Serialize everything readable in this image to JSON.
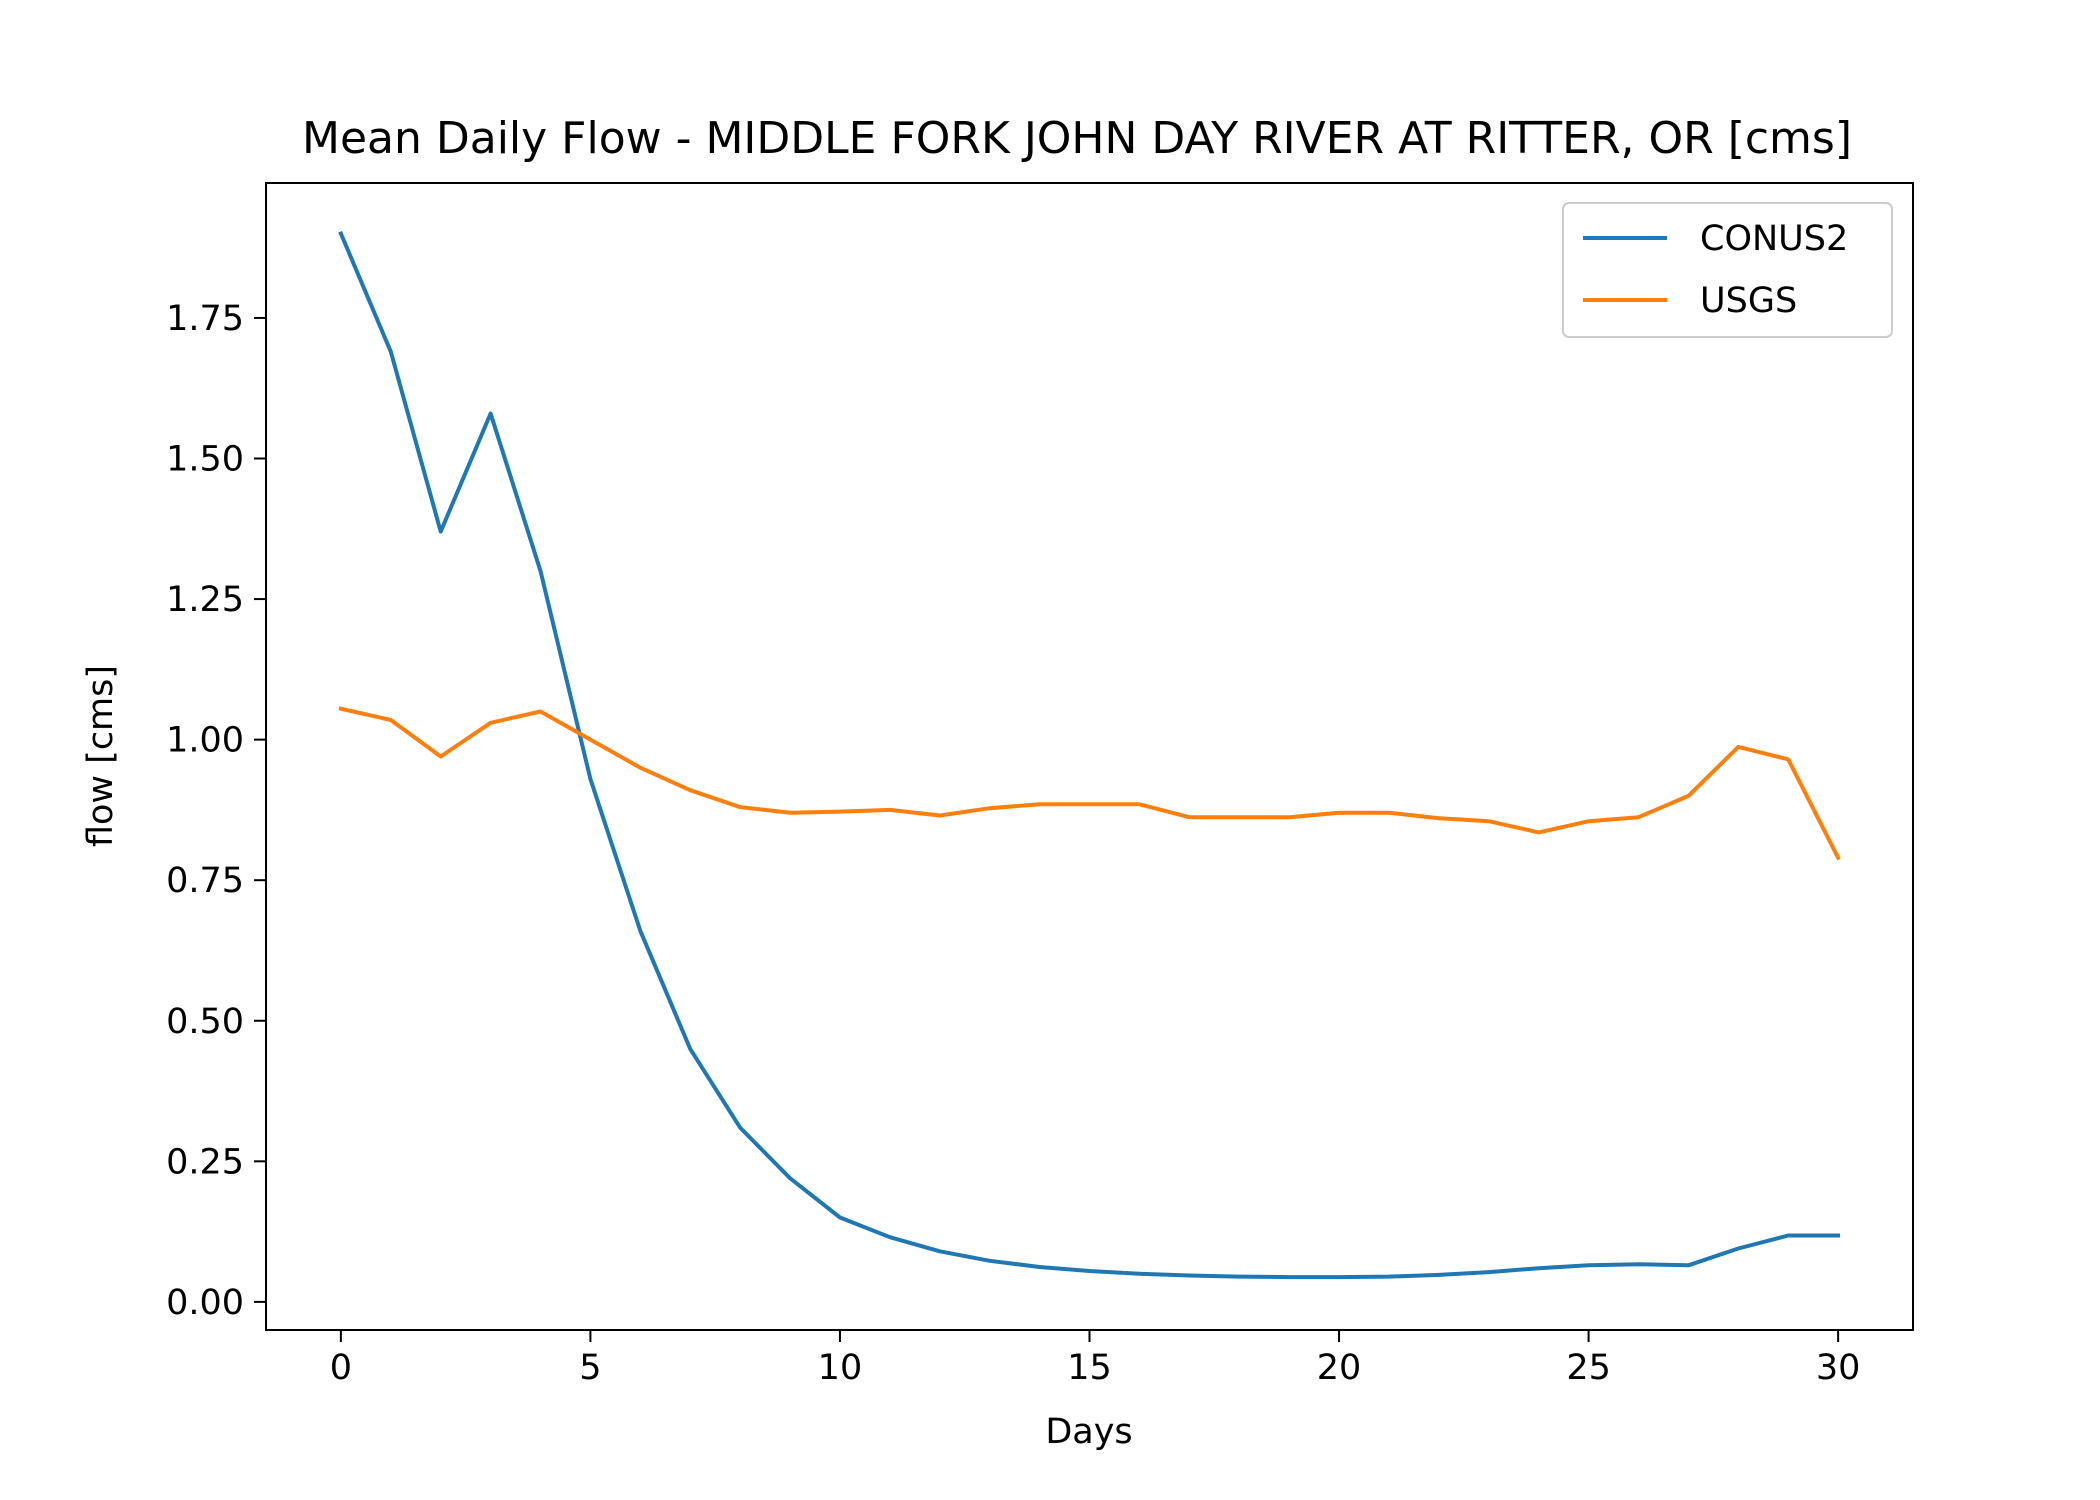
{
  "chart_data": {
    "type": "line",
    "title": "Mean Daily Flow - MIDDLE FORK JOHN DAY RIVER AT RITTER, OR [cms]",
    "xlabel": "Days",
    "ylabel": "flow [cms]",
    "xlim": [
      -1.5,
      31.5
    ],
    "ylim": [
      -0.05,
      1.99
    ],
    "xticks": [
      0,
      5,
      10,
      15,
      20,
      25,
      30
    ],
    "xtick_labels": [
      "0",
      "5",
      "10",
      "15",
      "20",
      "25",
      "30"
    ],
    "yticks": [
      0.0,
      0.25,
      0.5,
      0.75,
      1.0,
      1.25,
      1.5,
      1.75
    ],
    "ytick_labels": [
      "0.00",
      "0.25",
      "0.50",
      "0.75",
      "1.00",
      "1.25",
      "1.50",
      "1.75"
    ],
    "grid": false,
    "legend_position": "top-right",
    "x": [
      0,
      1,
      2,
      3,
      4,
      5,
      6,
      7,
      8,
      9,
      10,
      11,
      12,
      13,
      14,
      15,
      16,
      17,
      18,
      19,
      20,
      21,
      22,
      23,
      24,
      25,
      26,
      27,
      28,
      29,
      30
    ],
    "series": [
      {
        "name": "CONUS2",
        "color": "#1f77b4",
        "values": [
          1.9,
          1.69,
          1.37,
          1.58,
          1.3,
          0.93,
          0.66,
          0.45,
          0.31,
          0.22,
          0.15,
          0.115,
          0.09,
          0.073,
          0.062,
          0.055,
          0.05,
          0.047,
          0.045,
          0.044,
          0.044,
          0.045,
          0.048,
          0.053,
          0.06,
          0.065,
          0.067,
          0.065,
          0.095,
          0.118,
          0.118
        ]
      },
      {
        "name": "USGS",
        "color": "#ff7f0e",
        "values": [
          1.055,
          1.035,
          0.97,
          1.03,
          1.05,
          1.0,
          0.95,
          0.91,
          0.88,
          0.87,
          0.872,
          0.875,
          0.865,
          0.878,
          0.885,
          0.885,
          0.885,
          0.862,
          0.862,
          0.862,
          0.87,
          0.87,
          0.86,
          0.855,
          0.835,
          0.855,
          0.862,
          0.9,
          0.987,
          0.965,
          0.79
        ]
      }
    ]
  }
}
